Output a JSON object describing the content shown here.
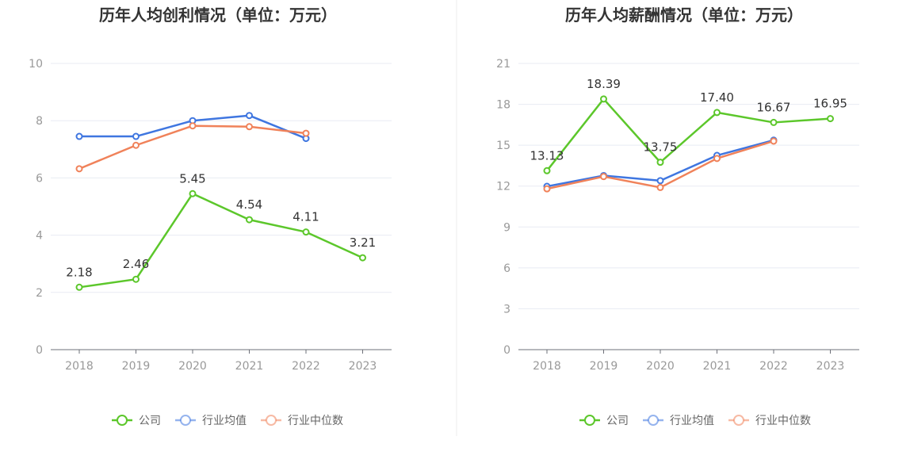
{
  "chart_data": [
    {
      "type": "line",
      "title": "历年人均创利情况（单位：万元）",
      "categories": [
        "2018",
        "2019",
        "2020",
        "2021",
        "2022",
        "2023"
      ],
      "ylim": [
        0,
        10
      ],
      "yticks": [
        0,
        2,
        4,
        6,
        8,
        10
      ],
      "grid": true,
      "legend_position": "bottom",
      "series": [
        {
          "name": "公司",
          "color": "#5cc72b",
          "values": [
            2.18,
            2.46,
            5.45,
            4.54,
            4.11,
            3.21
          ],
          "labels": [
            "2.18",
            "2.46",
            "5.45",
            "4.54",
            "4.11",
            "3.21"
          ]
        },
        {
          "name": "行业均值",
          "color": "#3f76e0",
          "values": [
            7.45,
            7.45,
            8.0,
            8.18,
            7.38,
            null
          ]
        },
        {
          "name": "行业中位数",
          "color": "#f0825a",
          "values": [
            6.32,
            7.14,
            7.82,
            7.79,
            7.56,
            null
          ]
        }
      ]
    },
    {
      "type": "line",
      "title": "历年人均薪酬情况（单位：万元）",
      "categories": [
        "2018",
        "2019",
        "2020",
        "2021",
        "2022",
        "2023"
      ],
      "ylim": [
        0,
        21
      ],
      "yticks": [
        0,
        3,
        6,
        9,
        12,
        15,
        18,
        21
      ],
      "grid": true,
      "legend_position": "bottom",
      "series": [
        {
          "name": "公司",
          "color": "#5cc72b",
          "values": [
            13.13,
            18.39,
            13.75,
            17.4,
            16.67,
            16.95
          ],
          "labels": [
            "13.13",
            "18.39",
            "13.75",
            "17.40",
            "16.67",
            "16.95"
          ]
        },
        {
          "name": "行业均值",
          "color": "#3f76e0",
          "values": [
            11.98,
            12.77,
            12.4,
            14.25,
            15.37,
            null
          ]
        },
        {
          "name": "行业中位数",
          "color": "#f0825a",
          "values": [
            11.8,
            12.7,
            11.9,
            14.03,
            15.3,
            null
          ]
        }
      ]
    }
  ]
}
